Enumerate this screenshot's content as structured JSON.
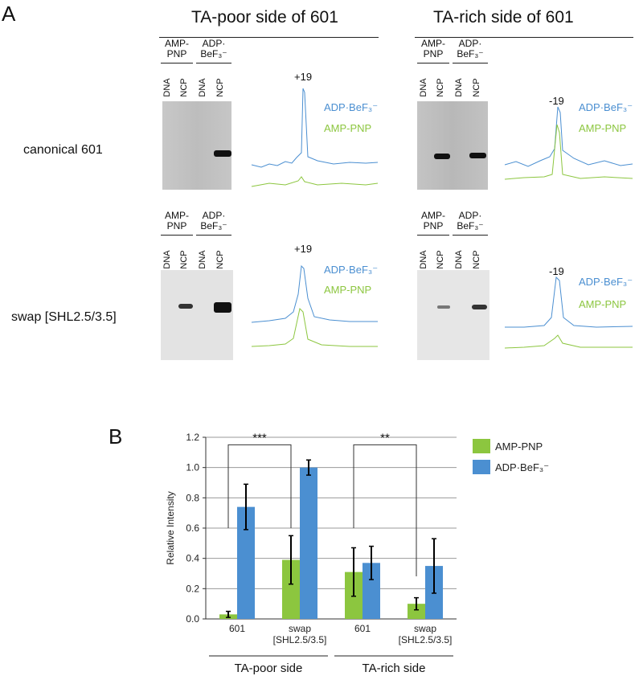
{
  "panel_a": {
    "letter": "A",
    "sides": [
      {
        "title": "TA-poor side of 601"
      },
      {
        "title": "TA-rich side of 601"
      }
    ],
    "rows": [
      {
        "label": "canonical 601"
      },
      {
        "label": "swap [SHL2.5/3.5]"
      }
    ],
    "conditions": {
      "amp_pnp": [
        "AMP-",
        "PNP"
      ],
      "adp_befx": [
        "ADP·",
        "BeF₃⁻"
      ]
    },
    "lanes": [
      "DNA",
      "NCP",
      "DNA",
      "NCP"
    ],
    "peaks": [
      {
        "label": "+19"
      },
      {
        "label": "-19"
      },
      {
        "label": "+19"
      },
      {
        "label": "-19"
      }
    ],
    "legend": {
      "adp": "ADP·BeF₃⁻",
      "amp": "AMP-PNP"
    },
    "colors": {
      "adp": "#4b8fd1",
      "amp": "#8cc63f"
    }
  },
  "chart_data": {
    "type": "bar",
    "panel_letter": "B",
    "ylabel": "Relative Intensity",
    "ylim": [
      0,
      1.2
    ],
    "yticks": [
      "0.0",
      "0.2",
      "0.4",
      "0.6",
      "0.8",
      "1.0",
      "1.2"
    ],
    "categories": [
      [
        "601"
      ],
      [
        "swap",
        "[SHL2.5/3.5]"
      ],
      [
        "601"
      ],
      [
        "swap",
        "[SHL2.5/3.5]"
      ]
    ],
    "groups": [
      {
        "label": "TA-poor side"
      },
      {
        "label": "TA-rich side"
      }
    ],
    "series": [
      {
        "name": "AMP-PNP",
        "color": "#8cc63f",
        "values": [
          0.03,
          0.39,
          0.31,
          0.1
        ],
        "errors": [
          0.02,
          0.16,
          0.16,
          0.04
        ]
      },
      {
        "name": "ADP·BeF₃⁻",
        "color": "#4b8fd1",
        "values": [
          0.74,
          1.0,
          0.37,
          0.35
        ],
        "errors": [
          0.15,
          0.05,
          0.11,
          0.18
        ]
      }
    ],
    "significance": [
      {
        "from": 0,
        "to": 1,
        "label": "***"
      },
      {
        "from": 2,
        "to": 3,
        "label": "**"
      }
    ],
    "grid": true,
    "legend_position": "top-right"
  }
}
